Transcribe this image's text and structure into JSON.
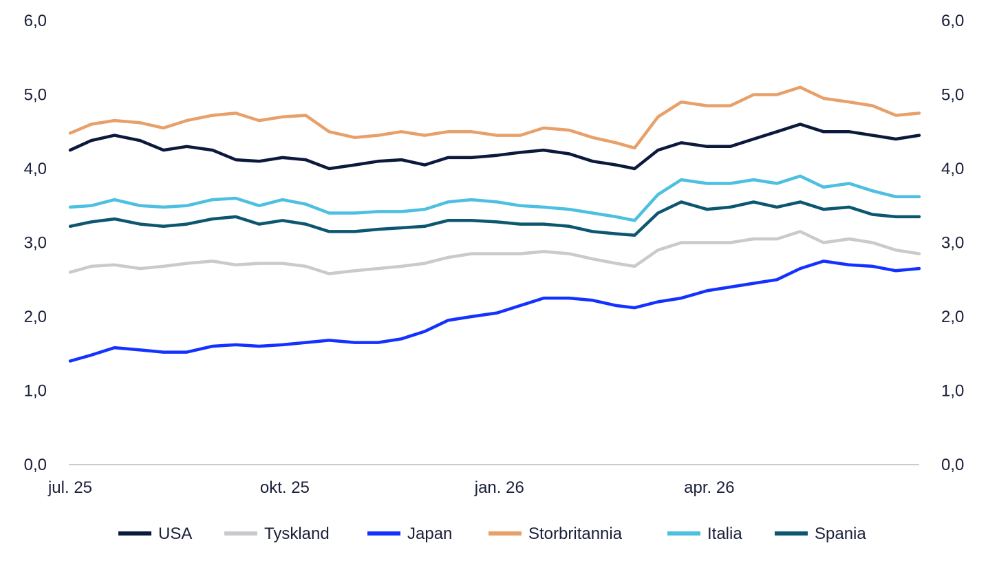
{
  "chart_data": {
    "type": "line",
    "title": "",
    "xlabel": "",
    "ylabel": "",
    "x_start": "2025-07-01",
    "x_end": "2026-06-30",
    "x_ticks": [
      {
        "date": "2025-07-01",
        "label": "jul. 25"
      },
      {
        "date": "2025-10-01",
        "label": "okt. 25"
      },
      {
        "date": "2026-01-01",
        "label": "jan. 26"
      },
      {
        "date": "2026-04-01",
        "label": "apr. 26"
      }
    ],
    "ylim": [
      0,
      6
    ],
    "y_ticks": [
      "0,0",
      "1,0",
      "2,0",
      "3,0",
      "4,0",
      "5,0",
      "6,0"
    ],
    "y_axis_right": true,
    "grid": false,
    "legend_position": "bottom",
    "series": [
      {
        "name": "USA",
        "color": "#0b1a3c",
        "points": [
          [
            "2025-07-01",
            4.25
          ],
          [
            "2025-07-10",
            4.38
          ],
          [
            "2025-07-20",
            4.45
          ],
          [
            "2025-07-31",
            4.38
          ],
          [
            "2025-08-10",
            4.25
          ],
          [
            "2025-08-20",
            4.3
          ],
          [
            "2025-08-31",
            4.25
          ],
          [
            "2025-09-10",
            4.12
          ],
          [
            "2025-09-20",
            4.1
          ],
          [
            "2025-09-30",
            4.15
          ],
          [
            "2025-10-10",
            4.12
          ],
          [
            "2025-10-20",
            4.0
          ],
          [
            "2025-10-31",
            4.05
          ],
          [
            "2025-11-10",
            4.1
          ],
          [
            "2025-11-20",
            4.12
          ],
          [
            "2025-11-30",
            4.05
          ],
          [
            "2025-12-10",
            4.15
          ],
          [
            "2025-12-20",
            4.15
          ],
          [
            "2025-12-31",
            4.18
          ],
          [
            "2026-01-10",
            4.22
          ],
          [
            "2026-01-20",
            4.25
          ],
          [
            "2026-01-31",
            4.2
          ],
          [
            "2026-02-10",
            4.1
          ],
          [
            "2026-02-20",
            4.05
          ],
          [
            "2026-02-28",
            4.0
          ],
          [
            "2026-03-10",
            4.25
          ],
          [
            "2026-03-20",
            4.35
          ],
          [
            "2026-03-31",
            4.3
          ],
          [
            "2026-04-10",
            4.3
          ],
          [
            "2026-04-20",
            4.4
          ],
          [
            "2026-04-30",
            4.5
          ],
          [
            "2026-05-10",
            4.6
          ],
          [
            "2026-05-20",
            4.5
          ],
          [
            "2026-05-31",
            4.5
          ],
          [
            "2026-06-10",
            4.45
          ],
          [
            "2026-06-20",
            4.4
          ],
          [
            "2026-06-30",
            4.45
          ]
        ]
      },
      {
        "name": "Tyskland",
        "color": "#c8cacd",
        "points": [
          [
            "2025-07-01",
            2.6
          ],
          [
            "2025-07-10",
            2.68
          ],
          [
            "2025-07-20",
            2.7
          ],
          [
            "2025-07-31",
            2.65
          ],
          [
            "2025-08-10",
            2.68
          ],
          [
            "2025-08-20",
            2.72
          ],
          [
            "2025-08-31",
            2.75
          ],
          [
            "2025-09-10",
            2.7
          ],
          [
            "2025-09-20",
            2.72
          ],
          [
            "2025-09-30",
            2.72
          ],
          [
            "2025-10-10",
            2.68
          ],
          [
            "2025-10-20",
            2.58
          ],
          [
            "2025-10-31",
            2.62
          ],
          [
            "2025-11-10",
            2.65
          ],
          [
            "2025-11-20",
            2.68
          ],
          [
            "2025-11-30",
            2.72
          ],
          [
            "2025-12-10",
            2.8
          ],
          [
            "2025-12-20",
            2.85
          ],
          [
            "2025-12-31",
            2.85
          ],
          [
            "2026-01-10",
            2.85
          ],
          [
            "2026-01-20",
            2.88
          ],
          [
            "2026-01-31",
            2.85
          ],
          [
            "2026-02-10",
            2.78
          ],
          [
            "2026-02-20",
            2.72
          ],
          [
            "2026-02-28",
            2.68
          ],
          [
            "2026-03-10",
            2.9
          ],
          [
            "2026-03-20",
            3.0
          ],
          [
            "2026-03-31",
            3.0
          ],
          [
            "2026-04-10",
            3.0
          ],
          [
            "2026-04-20",
            3.05
          ],
          [
            "2026-04-30",
            3.05
          ],
          [
            "2026-05-10",
            3.15
          ],
          [
            "2026-05-20",
            3.0
          ],
          [
            "2026-05-31",
            3.05
          ],
          [
            "2026-06-10",
            3.0
          ],
          [
            "2026-06-20",
            2.9
          ],
          [
            "2026-06-30",
            2.85
          ]
        ]
      },
      {
        "name": "Japan",
        "color": "#1432ff",
        "points": [
          [
            "2025-07-01",
            1.4
          ],
          [
            "2025-07-10",
            1.48
          ],
          [
            "2025-07-20",
            1.58
          ],
          [
            "2025-07-31",
            1.55
          ],
          [
            "2025-08-10",
            1.52
          ],
          [
            "2025-08-20",
            1.52
          ],
          [
            "2025-08-31",
            1.6
          ],
          [
            "2025-09-10",
            1.62
          ],
          [
            "2025-09-20",
            1.6
          ],
          [
            "2025-09-30",
            1.62
          ],
          [
            "2025-10-10",
            1.65
          ],
          [
            "2025-10-20",
            1.68
          ],
          [
            "2025-10-31",
            1.65
          ],
          [
            "2025-11-10",
            1.65
          ],
          [
            "2025-11-20",
            1.7
          ],
          [
            "2025-11-30",
            1.8
          ],
          [
            "2025-12-10",
            1.95
          ],
          [
            "2025-12-20",
            2.0
          ],
          [
            "2025-12-31",
            2.05
          ],
          [
            "2026-01-10",
            2.15
          ],
          [
            "2026-01-20",
            2.25
          ],
          [
            "2026-01-31",
            2.25
          ],
          [
            "2026-02-10",
            2.22
          ],
          [
            "2026-02-20",
            2.15
          ],
          [
            "2026-02-28",
            2.12
          ],
          [
            "2026-03-10",
            2.2
          ],
          [
            "2026-03-20",
            2.25
          ],
          [
            "2026-03-31",
            2.35
          ],
          [
            "2026-04-10",
            2.4
          ],
          [
            "2026-04-20",
            2.45
          ],
          [
            "2026-04-30",
            2.5
          ],
          [
            "2026-05-10",
            2.65
          ],
          [
            "2026-05-20",
            2.75
          ],
          [
            "2026-05-31",
            2.7
          ],
          [
            "2026-06-10",
            2.68
          ],
          [
            "2026-06-20",
            2.62
          ],
          [
            "2026-06-30",
            2.65
          ]
        ]
      },
      {
        "name": "Storbritannia",
        "color": "#e8a06a",
        "points": [
          [
            "2025-07-01",
            4.48
          ],
          [
            "2025-07-10",
            4.6
          ],
          [
            "2025-07-20",
            4.65
          ],
          [
            "2025-07-31",
            4.62
          ],
          [
            "2025-08-10",
            4.55
          ],
          [
            "2025-08-20",
            4.65
          ],
          [
            "2025-08-31",
            4.72
          ],
          [
            "2025-09-10",
            4.75
          ],
          [
            "2025-09-20",
            4.65
          ],
          [
            "2025-09-30",
            4.7
          ],
          [
            "2025-10-10",
            4.72
          ],
          [
            "2025-10-20",
            4.5
          ],
          [
            "2025-10-31",
            4.42
          ],
          [
            "2025-11-10",
            4.45
          ],
          [
            "2025-11-20",
            4.5
          ],
          [
            "2025-11-30",
            4.45
          ],
          [
            "2025-12-10",
            4.5
          ],
          [
            "2025-12-20",
            4.5
          ],
          [
            "2025-12-31",
            4.45
          ],
          [
            "2026-01-10",
            4.45
          ],
          [
            "2026-01-20",
            4.55
          ],
          [
            "2026-01-31",
            4.52
          ],
          [
            "2026-02-10",
            4.42
          ],
          [
            "2026-02-20",
            4.35
          ],
          [
            "2026-02-28",
            4.28
          ],
          [
            "2026-03-10",
            4.7
          ],
          [
            "2026-03-20",
            4.9
          ],
          [
            "2026-03-31",
            4.85
          ],
          [
            "2026-04-10",
            4.85
          ],
          [
            "2026-04-20",
            5.0
          ],
          [
            "2026-04-30",
            5.0
          ],
          [
            "2026-05-10",
            5.1
          ],
          [
            "2026-05-20",
            4.95
          ],
          [
            "2026-05-31",
            4.9
          ],
          [
            "2026-06-10",
            4.85
          ],
          [
            "2026-06-20",
            4.72
          ],
          [
            "2026-06-30",
            4.75
          ]
        ]
      },
      {
        "name": "Italia",
        "color": "#4dbfe0",
        "points": [
          [
            "2025-07-01",
            3.48
          ],
          [
            "2025-07-10",
            3.5
          ],
          [
            "2025-07-20",
            3.58
          ],
          [
            "2025-07-31",
            3.5
          ],
          [
            "2025-08-10",
            3.48
          ],
          [
            "2025-08-20",
            3.5
          ],
          [
            "2025-08-31",
            3.58
          ],
          [
            "2025-09-10",
            3.6
          ],
          [
            "2025-09-20",
            3.5
          ],
          [
            "2025-09-30",
            3.58
          ],
          [
            "2025-10-10",
            3.52
          ],
          [
            "2025-10-20",
            3.4
          ],
          [
            "2025-10-31",
            3.4
          ],
          [
            "2025-11-10",
            3.42
          ],
          [
            "2025-11-20",
            3.42
          ],
          [
            "2025-11-30",
            3.45
          ],
          [
            "2025-12-10",
            3.55
          ],
          [
            "2025-12-20",
            3.58
          ],
          [
            "2025-12-31",
            3.55
          ],
          [
            "2026-01-10",
            3.5
          ],
          [
            "2026-01-20",
            3.48
          ],
          [
            "2026-01-31",
            3.45
          ],
          [
            "2026-02-10",
            3.4
          ],
          [
            "2026-02-20",
            3.35
          ],
          [
            "2026-02-28",
            3.3
          ],
          [
            "2026-03-10",
            3.65
          ],
          [
            "2026-03-20",
            3.85
          ],
          [
            "2026-03-31",
            3.8
          ],
          [
            "2026-04-10",
            3.8
          ],
          [
            "2026-04-20",
            3.85
          ],
          [
            "2026-04-30",
            3.8
          ],
          [
            "2026-05-10",
            3.9
          ],
          [
            "2026-05-20",
            3.75
          ],
          [
            "2026-05-31",
            3.8
          ],
          [
            "2026-06-10",
            3.7
          ],
          [
            "2026-06-20",
            3.62
          ],
          [
            "2026-06-30",
            3.62
          ]
        ]
      },
      {
        "name": "Spania",
        "color": "#0d5670",
        "points": [
          [
            "2025-07-01",
            3.22
          ],
          [
            "2025-07-10",
            3.28
          ],
          [
            "2025-07-20",
            3.32
          ],
          [
            "2025-07-31",
            3.25
          ],
          [
            "2025-08-10",
            3.22
          ],
          [
            "2025-08-20",
            3.25
          ],
          [
            "2025-08-31",
            3.32
          ],
          [
            "2025-09-10",
            3.35
          ],
          [
            "2025-09-20",
            3.25
          ],
          [
            "2025-09-30",
            3.3
          ],
          [
            "2025-10-10",
            3.25
          ],
          [
            "2025-10-20",
            3.15
          ],
          [
            "2025-10-31",
            3.15
          ],
          [
            "2025-11-10",
            3.18
          ],
          [
            "2025-11-20",
            3.2
          ],
          [
            "2025-11-30",
            3.22
          ],
          [
            "2025-12-10",
            3.3
          ],
          [
            "2025-12-20",
            3.3
          ],
          [
            "2025-12-31",
            3.28
          ],
          [
            "2026-01-10",
            3.25
          ],
          [
            "2026-01-20",
            3.25
          ],
          [
            "2026-01-31",
            3.22
          ],
          [
            "2026-02-10",
            3.15
          ],
          [
            "2026-02-20",
            3.12
          ],
          [
            "2026-02-28",
            3.1
          ],
          [
            "2026-03-10",
            3.4
          ],
          [
            "2026-03-20",
            3.55
          ],
          [
            "2026-03-31",
            3.45
          ],
          [
            "2026-04-10",
            3.48
          ],
          [
            "2026-04-20",
            3.55
          ],
          [
            "2026-04-30",
            3.48
          ],
          [
            "2026-05-10",
            3.55
          ],
          [
            "2026-05-20",
            3.45
          ],
          [
            "2026-05-31",
            3.48
          ],
          [
            "2026-06-10",
            3.38
          ],
          [
            "2026-06-20",
            3.35
          ],
          [
            "2026-06-30",
            3.35
          ]
        ]
      }
    ]
  }
}
